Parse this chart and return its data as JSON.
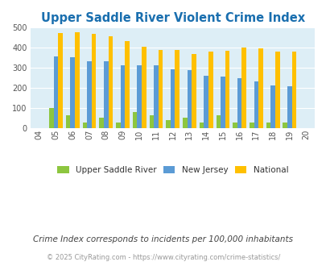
{
  "title": "Upper Saddle River Violent Crime Index",
  "all_years": [
    2004,
    2005,
    2006,
    2007,
    2008,
    2009,
    2010,
    2011,
    2012,
    2013,
    2014,
    2015,
    2016,
    2017,
    2018,
    2019,
    2020
  ],
  "plot_years": [
    2005,
    2006,
    2007,
    2008,
    2009,
    2010,
    2011,
    2012,
    2013,
    2014,
    2015,
    2016,
    2017,
    2018,
    2019
  ],
  "upper_saddle_river": [
    100,
    62,
    27,
    50,
    27,
    78,
    65,
    40,
    52,
    27,
    65,
    27,
    27,
    27,
    27
  ],
  "new_jersey": [
    355,
    352,
    330,
    330,
    312,
    310,
    310,
    293,
    289,
    261,
    256,
    248,
    231,
    211,
    207
  ],
  "national": [
    470,
    474,
    467,
    455,
    432,
    405,
    388,
    388,
    368,
    378,
    383,
    398,
    394,
    380,
    379
  ],
  "color_upr": "#8dc63f",
  "color_nj": "#5b9bd5",
  "color_nat": "#ffc000",
  "plot_bg": "#ddeef6",
  "ylim": [
    0,
    500
  ],
  "yticks": [
    0,
    100,
    200,
    300,
    400,
    500
  ],
  "subtitle": "Crime Index corresponds to incidents per 100,000 inhabitants",
  "footer": "© 2025 CityRating.com - https://www.cityrating.com/crime-statistics/",
  "legend_labels": [
    "Upper Saddle River",
    "New Jersey",
    "National"
  ],
  "title_color": "#1a6faf",
  "subtitle_color": "#444444",
  "footer_color": "#999999",
  "bar_width": 0.27
}
